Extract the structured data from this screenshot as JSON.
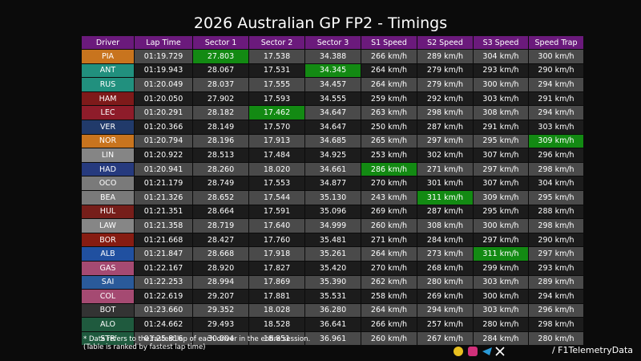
{
  "title": "2026 Australian GP FP2 - Timings",
  "table": {
    "header": [
      "Driver",
      "Lap Time",
      "Sector 1",
      "Sector 2",
      "Sector 3",
      "S1 Speed",
      "S2 Speed",
      "S3 Speed",
      "Speed Trap"
    ],
    "rows": [
      [
        "PIA",
        "01:19.729",
        "27.803",
        "17.538",
        "34.388",
        "266 km/h",
        "289 km/h",
        "304 km/h",
        "300 km/h"
      ],
      [
        "ANT",
        "01:19.943",
        "28.067",
        "17.531",
        "34.345",
        "264 km/h",
        "279 km/h",
        "293 km/h",
        "290 km/h"
      ],
      [
        "RUS",
        "01:20.049",
        "28.037",
        "17.555",
        "34.457",
        "264 km/h",
        "279 km/h",
        "300 km/h",
        "294 km/h"
      ],
      [
        "HAM",
        "01:20.050",
        "27.902",
        "17.593",
        "34.555",
        "259 km/h",
        "292 km/h",
        "303 km/h",
        "291 km/h"
      ],
      [
        "LEC",
        "01:20.291",
        "28.182",
        "17.462",
        "34.647",
        "263 km/h",
        "298 km/h",
        "308 km/h",
        "294 km/h"
      ],
      [
        "VER",
        "01:20.366",
        "28.149",
        "17.570",
        "34.647",
        "250 km/h",
        "287 km/h",
        "291 km/h",
        "303 km/h"
      ],
      [
        "NOR",
        "01:20.794",
        "28.196",
        "17.913",
        "34.685",
        "265 km/h",
        "297 km/h",
        "295 km/h",
        "309 km/h"
      ],
      [
        "LIN",
        "01:20.922",
        "28.513",
        "17.484",
        "34.925",
        "253 km/h",
        "302 km/h",
        "307 km/h",
        "296 km/h"
      ],
      [
        "HAD",
        "01:20.941",
        "28.260",
        "18.020",
        "34.661",
        "286 km/h",
        "271 km/h",
        "297 km/h",
        "298 km/h"
      ],
      [
        "OCO",
        "01:21.179",
        "28.749",
        "17.553",
        "34.877",
        "270 km/h",
        "301 km/h",
        "307 km/h",
        "304 km/h"
      ],
      [
        "BEA",
        "01:21.326",
        "28.652",
        "17.544",
        "35.130",
        "243 km/h",
        "311 km/h",
        "309 km/h",
        "295 km/h"
      ],
      [
        "HUL",
        "01:21.351",
        "28.664",
        "17.591",
        "35.096",
        "269 km/h",
        "287 km/h",
        "295 km/h",
        "288 km/h"
      ],
      [
        "LAW",
        "01:21.358",
        "28.719",
        "17.640",
        "34.999",
        "260 km/h",
        "308 km/h",
        "300 km/h",
        "298 km/h"
      ],
      [
        "BOR",
        "01:21.668",
        "28.427",
        "17.760",
        "35.481",
        "271 km/h",
        "284 km/h",
        "297 km/h",
        "290 km/h"
      ],
      [
        "ALB",
        "01:21.847",
        "28.668",
        "17.918",
        "35.261",
        "264 km/h",
        "273 km/h",
        "311 km/h",
        "297 km/h"
      ],
      [
        "GAS",
        "01:22.167",
        "28.920",
        "17.827",
        "35.420",
        "270 km/h",
        "268 km/h",
        "299 km/h",
        "293 km/h"
      ],
      [
        "SAI",
        "01:22.253",
        "28.994",
        "17.869",
        "35.390",
        "262 km/h",
        "280 km/h",
        "303 km/h",
        "289 km/h"
      ],
      [
        "COL",
        "01:22.619",
        "29.207",
        "17.881",
        "35.531",
        "258 km/h",
        "269 km/h",
        "300 km/h",
        "294 km/h"
      ],
      [
        "BOT",
        "01:23.660",
        "29.352",
        "18.028",
        "36.280",
        "264 km/h",
        "294 km/h",
        "303 km/h",
        "296 km/h"
      ],
      [
        "ALO",
        "01:24.662",
        "29.493",
        "18.528",
        "36.641",
        "266 km/h",
        "257 km/h",
        "280 km/h",
        "298 km/h"
      ],
      [
        "STR",
        "01:25.816",
        "30.004",
        "18.851",
        "36.961",
        "260 km/h",
        "267 km/h",
        "284 km/h",
        "280 km/h"
      ]
    ],
    "driver_colors": [
      "#c8741e",
      "#21907e",
      "#21907e",
      "#7e1a1a",
      "#8e1c2a",
      "#213a6a",
      "#c8741e",
      "#858585",
      "#263a7e",
      "#7a7a7a",
      "#7a7a7a",
      "#761e1a",
      "#868686",
      "#861c12",
      "#2050a0",
      "#a54a72",
      "#2a5a9a",
      "#a54a72",
      "#333333",
      "#1f5a3e",
      "#1f5a3e"
    ]
  },
  "notes": [
    "* Data refers to the fastest lap of each driver in the entire session.",
    "(Table is ranked by fastest lap time)"
  ],
  "footer": "/ F1TelemetryData"
}
